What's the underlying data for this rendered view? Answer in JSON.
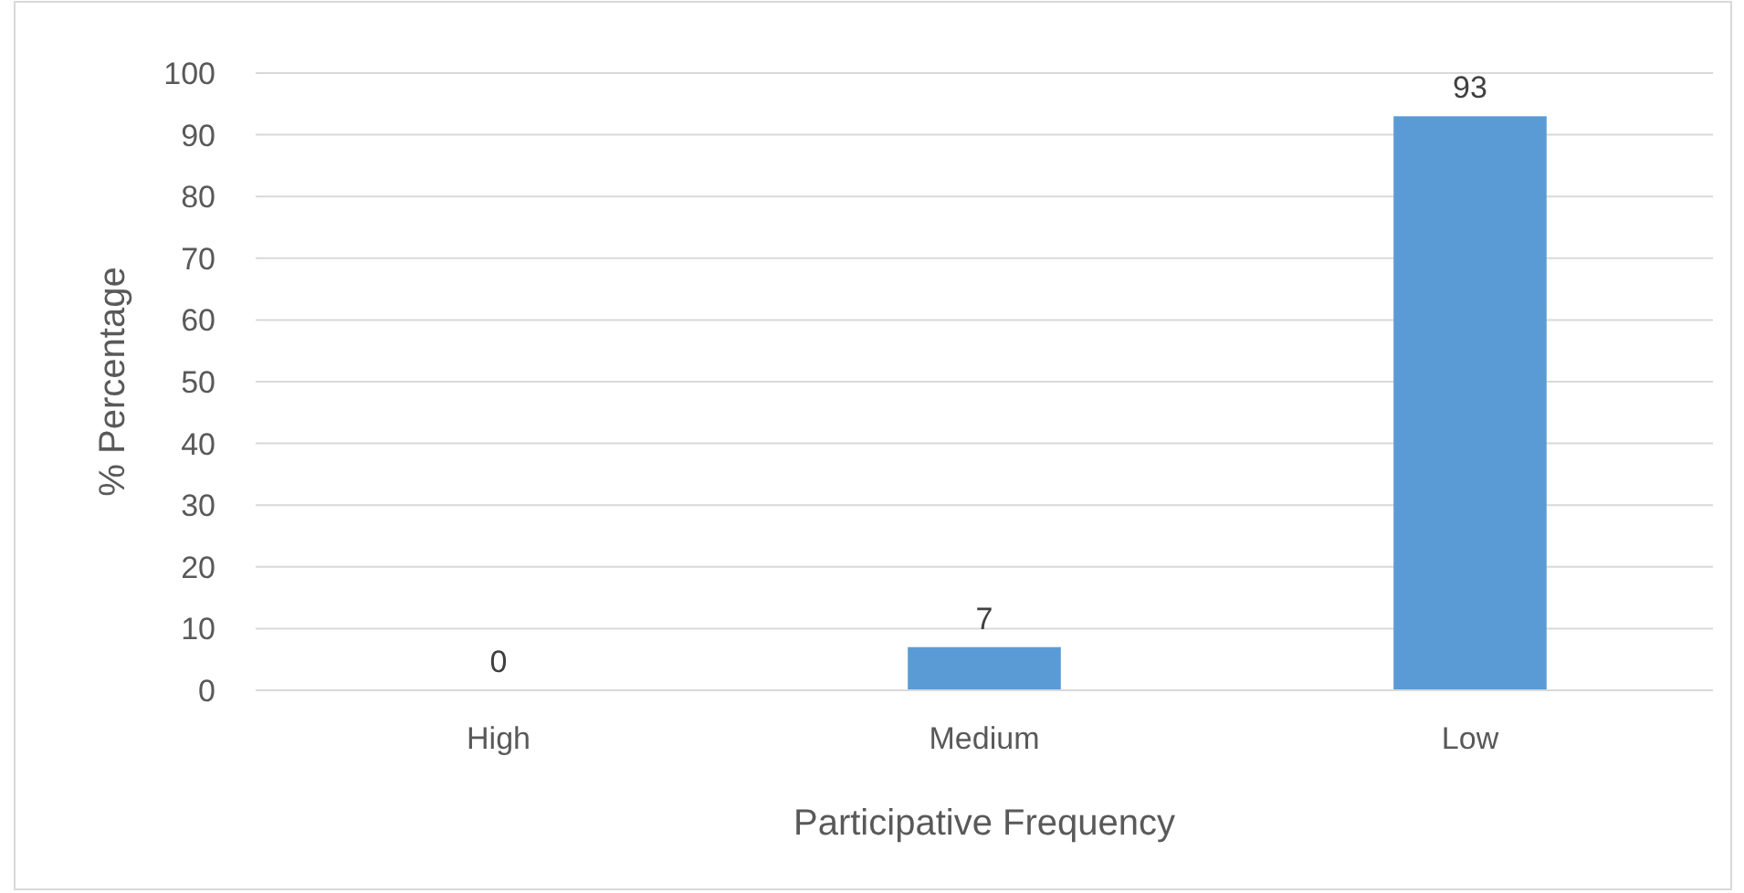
{
  "chart_data": {
    "type": "bar",
    "xlabel": "Participative Frequency",
    "ylabel": "% Percentage",
    "categories": [
      "High",
      "Medium",
      "Low"
    ],
    "values": [
      0,
      7,
      93
    ],
    "color": "#5b9bd5",
    "ylim": [
      0,
      100
    ],
    "yticks": [
      0,
      10,
      20,
      30,
      40,
      50,
      60,
      70,
      80,
      90,
      100
    ],
    "grid": "y",
    "data_labels": true
  }
}
